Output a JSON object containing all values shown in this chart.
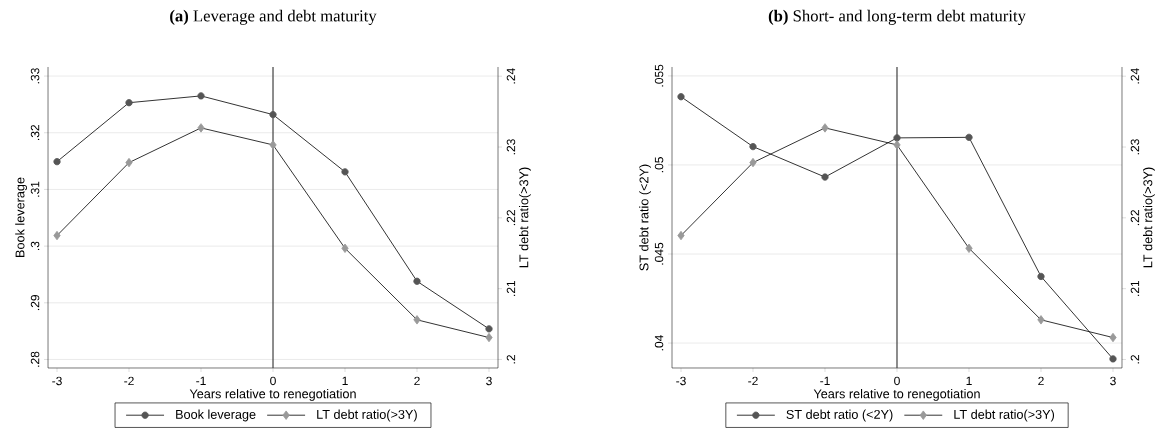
{
  "chart_data": [
    {
      "type": "line",
      "title": "**(a)** Leverage and debt maturity",
      "xlabel": "Years relative to renegotiation",
      "ylabel": "Book leverage",
      "y2label": "LT debt ratio(>3Y)",
      "x": [
        -3,
        -2,
        -1,
        0,
        1,
        2,
        3
      ],
      "series": [
        {
          "name": "Book leverage",
          "color": "#555555",
          "marker": "circle",
          "values": [
            0.3149,
            0.3253,
            0.3265,
            0.3232,
            0.3131,
            0.2938,
            0.2854
          ]
        },
        {
          "name": "LT debt ratio(>3Y)",
          "color": "#999999",
          "marker": "diamond",
          "axis": "y2",
          "values": [
            0.2175,
            0.2278,
            0.2327,
            0.2303,
            0.2157,
            0.2056,
            0.2031
          ]
        }
      ],
      "xlim": [
        -3.125,
        3.125
      ],
      "xticks": [
        -3,
        -2,
        -1,
        0,
        1,
        2,
        3
      ],
      "ylim": [
        0.2785,
        0.3316
      ],
      "yticks": [
        {
          "value": 0.28,
          "label": ".28"
        },
        {
          "value": 0.29,
          "label": ".29"
        },
        {
          "value": 0.3,
          "label": ".3"
        },
        {
          "value": 0.31,
          "label": ".31"
        },
        {
          "value": 0.32,
          "label": ".32"
        },
        {
          "value": 0.33,
          "label": ".33"
        }
      ],
      "y2lim": [
        0.1988,
        0.2413
      ],
      "y2ticks": [
        {
          "value": 0.2,
          "label": ".2"
        },
        {
          "value": 0.21,
          "label": ".21"
        },
        {
          "value": 0.22,
          "label": ".22"
        },
        {
          "value": 0.23,
          "label": ".23"
        },
        {
          "value": 0.24,
          "label": ".24"
        }
      ],
      "ref_lines": [
        {
          "axis": "x",
          "value": 0,
          "color": "#404040"
        }
      ],
      "grid": "y",
      "legend": "bottom",
      "line_style": "solid"
    },
    {
      "type": "line",
      "title": "**(b)** Short- and long-term debt maturity",
      "xlabel": "Years relative to renegotiation",
      "ylabel": "ST debt ratio (<2Y)",
      "y2label": "LT debt ratio(>3Y)",
      "x": [
        -3,
        -2,
        -1,
        0,
        1,
        2,
        3
      ],
      "series": [
        {
          "name": "ST debt ratio (<2Y)",
          "color": "#555555",
          "marker": "circle",
          "values": [
            0.05383,
            0.05103,
            0.04932,
            0.05152,
            0.05155,
            0.04374,
            0.03911
          ]
        },
        {
          "name": "LT debt ratio(>3Y)",
          "color": "#999999",
          "marker": "diamond",
          "axis": "y2",
          "values": [
            0.2175,
            0.2278,
            0.2327,
            0.2303,
            0.2157,
            0.2056,
            0.2031
          ]
        }
      ],
      "xlim": [
        -3.125,
        3.125
      ],
      "xticks": [
        -3,
        -2,
        -1,
        0,
        1,
        2,
        3
      ],
      "ylim": [
        0.0386,
        0.0555
      ],
      "yticks": [
        {
          "value": 0.04,
          "label": ".04"
        },
        {
          "value": 0.045,
          "label": ".045"
        },
        {
          "value": 0.05,
          "label": ".05"
        },
        {
          "value": 0.055,
          "label": ".055"
        }
      ],
      "y2lim": [
        0.1988,
        0.2413
      ],
      "y2ticks": [
        {
          "value": 0.2,
          "label": ".2"
        },
        {
          "value": 0.21,
          "label": ".21"
        },
        {
          "value": 0.22,
          "label": ".22"
        },
        {
          "value": 0.23,
          "label": ".23"
        },
        {
          "value": 0.24,
          "label": ".24"
        }
      ],
      "ref_lines": [
        {
          "axis": "x",
          "value": 0,
          "color": "#404040"
        }
      ],
      "grid": "y",
      "legend": "bottom",
      "line_style": "solid"
    }
  ]
}
